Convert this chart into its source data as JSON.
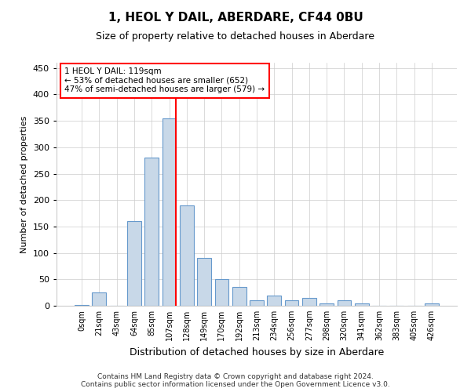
{
  "title": "1, HEOL Y DAIL, ABERDARE, CF44 0BU",
  "subtitle": "Size of property relative to detached houses in Aberdare",
  "xlabel": "Distribution of detached houses by size in Aberdare",
  "ylabel": "Number of detached properties",
  "footer": "Contains HM Land Registry data © Crown copyright and database right 2024.\nContains public sector information licensed under the Open Government Licence v3.0.",
  "bar_color": "#c8d8e8",
  "bar_edge_color": "#6699cc",
  "categories": [
    "0sqm",
    "21sqm",
    "43sqm",
    "64sqm",
    "85sqm",
    "107sqm",
    "128sqm",
    "149sqm",
    "170sqm",
    "192sqm",
    "213sqm",
    "234sqm",
    "256sqm",
    "277sqm",
    "298sqm",
    "320sqm",
    "341sqm",
    "362sqm",
    "383sqm",
    "405sqm",
    "426sqm"
  ],
  "values": [
    1,
    25,
    0,
    160,
    280,
    355,
    190,
    90,
    50,
    35,
    10,
    20,
    10,
    15,
    5,
    10,
    5,
    0,
    0,
    0,
    5
  ],
  "annotation_text": "1 HEOL Y DAIL: 119sqm\n← 53% of detached houses are smaller (652)\n47% of semi-detached houses are larger (579) →",
  "annotation_box_color": "white",
  "annotation_box_edge_color": "red",
  "vline_color": "red",
  "vline_bin": 5,
  "ylim": [
    0,
    460
  ],
  "yticks": [
    0,
    50,
    100,
    150,
    200,
    250,
    300,
    350,
    400,
    450
  ],
  "title_fontsize": 11,
  "subtitle_fontsize": 9,
  "ylabel_fontsize": 8,
  "xlabel_fontsize": 9,
  "footer_fontsize": 6.5,
  "tick_fontsize": 7,
  "annotation_fontsize": 7.5,
  "bar_linewidth": 0.8,
  "vline_linewidth": 1.5,
  "grid_color": "#cccccc",
  "grid_linewidth": 0.5
}
